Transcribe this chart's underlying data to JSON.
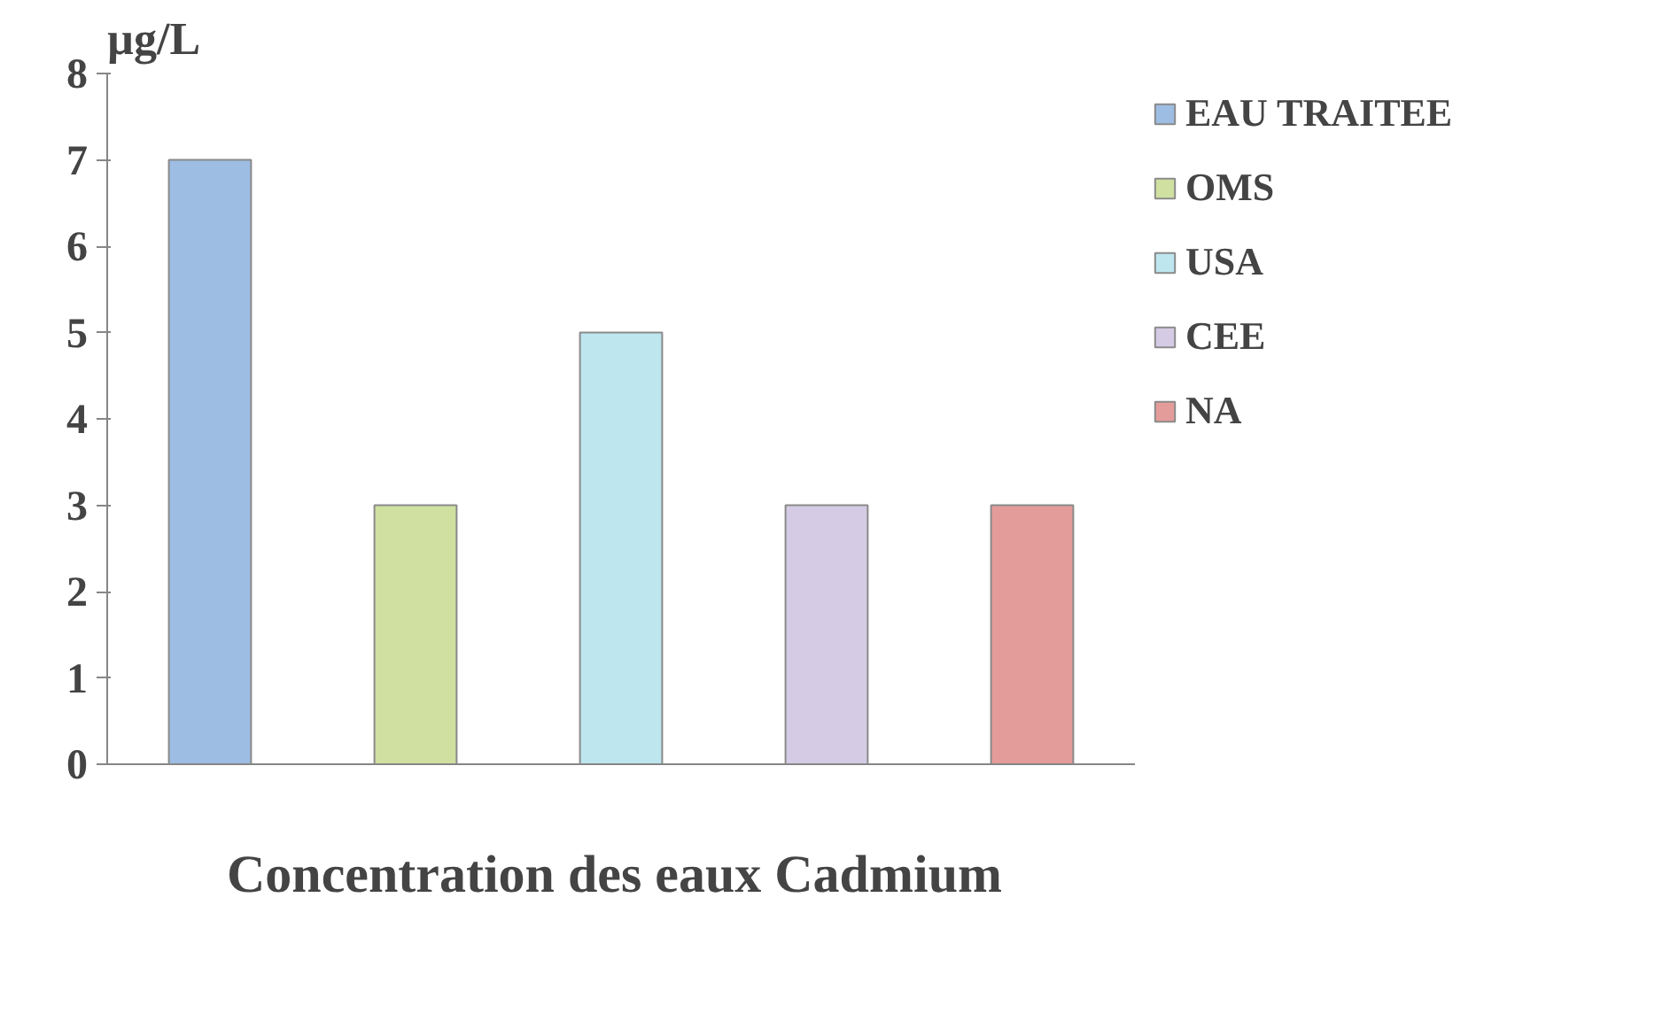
{
  "chart_data": {
    "type": "bar",
    "xlabel": "Concentration des eaux  Cadmium",
    "ylabel": "µg/L",
    "categories": [
      null,
      null,
      null,
      null,
      null
    ],
    "series": [
      {
        "name": "EAU TRAITEE",
        "color": "#9dbde3",
        "values": [
          7,
          null,
          null,
          null,
          null
        ]
      },
      {
        "name": "OMS",
        "color": "#cfe0a0",
        "values": [
          null,
          3,
          null,
          null,
          null
        ]
      },
      {
        "name": "USA",
        "color": "#bde6ef",
        "values": [
          null,
          null,
          5,
          null,
          null
        ]
      },
      {
        "name": "CEE",
        "color": "#d5cbe4",
        "values": [
          null,
          null,
          null,
          3,
          null
        ]
      },
      {
        "name": "NA",
        "color": "#e49c9a",
        "values": [
          null,
          null,
          null,
          null,
          3
        ]
      }
    ],
    "ylim": [
      0,
      8
    ],
    "yticks": [
      0,
      1,
      2,
      3,
      4,
      5,
      6,
      7,
      8
    ],
    "grid": false,
    "legend": "top right",
    "tick_labels": "y"
  }
}
